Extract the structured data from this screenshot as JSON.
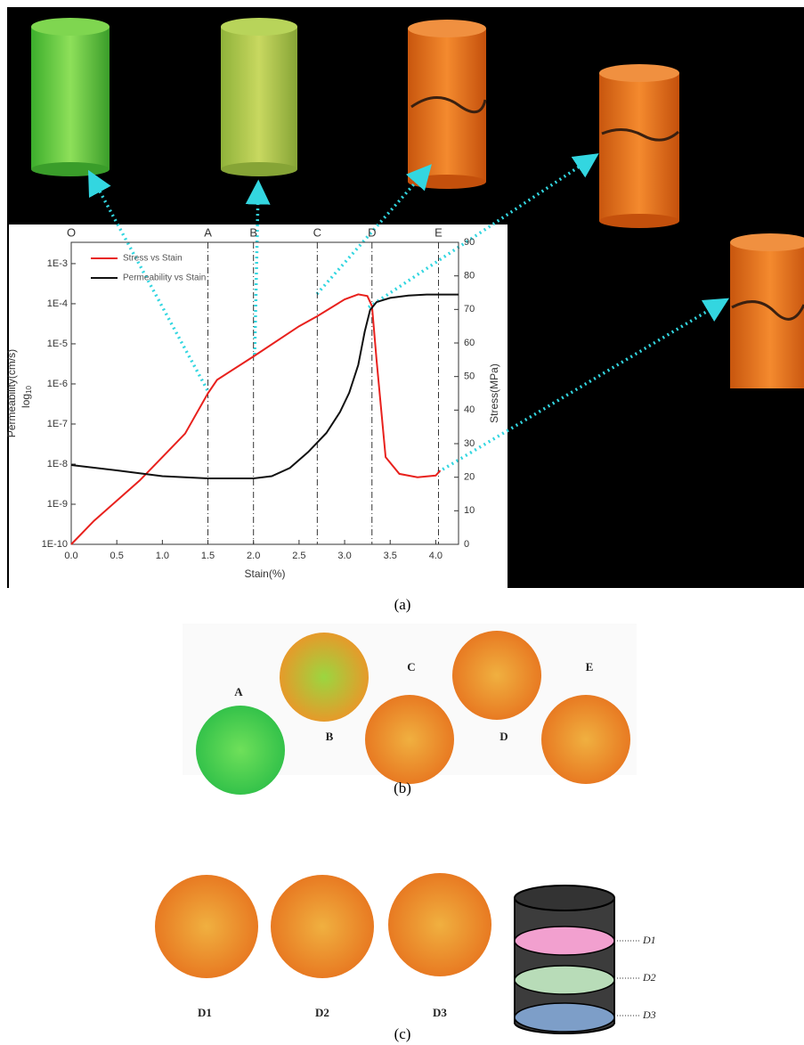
{
  "chart_data": {
    "type": "line",
    "xlabel": "Stain(%)",
    "ylabel_log": "log",
    "ylabel_base": "10",
    "ylabel": "Permeability(cm/s)",
    "y2label": "Stress(MPa)",
    "xlim": [
      0,
      4.25
    ],
    "xticks": [
      {
        "value": 0,
        "label": "0.0"
      },
      0.5,
      {
        "value": 1,
        "label": "1.0"
      },
      1.5,
      {
        "value": 2,
        "label": "2.0"
      },
      2.5,
      {
        "value": 3,
        "label": "3.0"
      },
      3.5,
      {
        "value": 4,
        "label": "4.0"
      }
    ],
    "ylog": true,
    "ylim": [
      1e-10,
      0.0034
    ],
    "yticks": [
      {
        "value": 1e-10,
        "label": "1E-10"
      },
      {
        "value": 1e-09,
        "label": "1E-9"
      },
      {
        "value": 1e-08,
        "label": "1E-8"
      },
      {
        "value": 1e-07,
        "label": "1E-7"
      },
      {
        "value": 1e-06,
        "label": "1E-6"
      },
      {
        "value": 1e-05,
        "label": "1E-5"
      },
      {
        "value": 0.0001,
        "label": "1E-4"
      },
      {
        "value": 0.001,
        "label": "1E-3"
      }
    ],
    "y2lim": [
      0,
      90
    ],
    "y2ticks": [
      0,
      10,
      20,
      30,
      40,
      50,
      60,
      70,
      80,
      90
    ],
    "grid": false,
    "legend": "upper-left",
    "stages": {
      "labels": [
        "O",
        "A",
        "B",
        "C",
        "D",
        "E"
      ],
      "x": [
        0,
        1.5,
        2.0,
        2.7,
        3.3,
        4.03
      ]
    },
    "series": [
      {
        "name": "Stress vs Stain",
        "color": "#e8211d",
        "axis": "y2",
        "x": [
          0,
          0.25,
          0.5,
          0.75,
          1.0,
          1.25,
          1.5,
          1.6,
          2.0,
          2.5,
          2.7,
          3.0,
          3.15,
          3.25,
          3.3,
          3.35,
          3.45,
          3.6,
          3.8,
          4.0,
          4.05
        ],
        "values": [
          0,
          7,
          13,
          19,
          26,
          33,
          45,
          49,
          56,
          65,
          68,
          73,
          74.5,
          74,
          71,
          55,
          26,
          21,
          20,
          20.5,
          22
        ]
      },
      {
        "name": "Permeability vs Stain",
        "color": "#111111",
        "x": [
          0,
          0.5,
          1.0,
          1.5,
          2.0,
          2.2,
          2.4,
          2.6,
          2.8,
          2.95,
          3.05,
          3.15,
          3.22,
          3.28,
          3.35,
          3.5,
          3.7,
          3.9,
          4.1,
          4.25
        ],
        "values": [
          9.5e-09,
          7e-09,
          5e-09,
          4.4e-09,
          4.4e-09,
          5e-09,
          8e-09,
          2e-08,
          6e-08,
          2e-07,
          6e-07,
          3e-06,
          2e-05,
          7e-05,
          0.00011,
          0.00014,
          0.00016,
          0.00017,
          0.00017,
          0.00017
        ]
      }
    ]
  },
  "captions": [
    "(a)",
    "(b)",
    "(c)"
  ],
  "panel_b": {
    "labels": [
      "A",
      "B",
      "C",
      "D",
      "E"
    ]
  },
  "panel_c": {
    "labels": [
      "D1",
      "D2",
      "D3"
    ],
    "diagram_labels": [
      "D1",
      "D2",
      "D3"
    ]
  }
}
